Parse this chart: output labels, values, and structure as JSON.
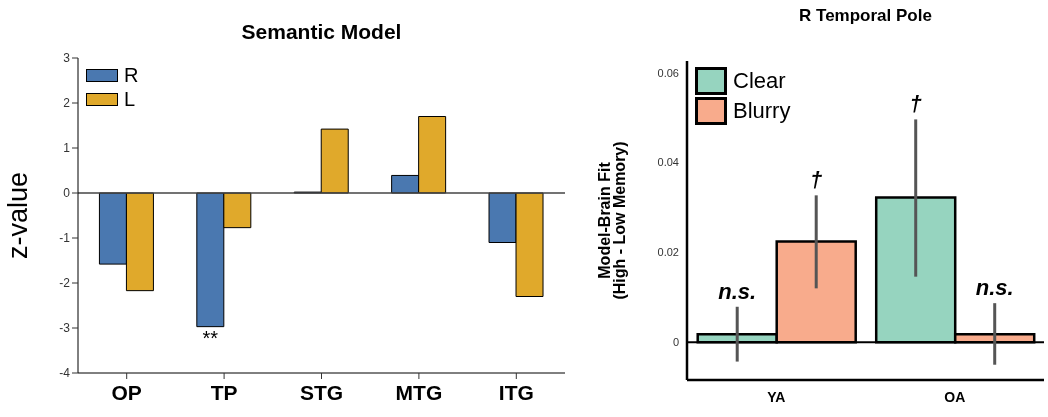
{
  "chart_data": [
    {
      "type": "bar",
      "title": "Semantic Model",
      "ylabel": "z-value",
      "categories": [
        "OP",
        "TP",
        "STG",
        "MTG",
        "ITG"
      ],
      "ylim": [
        -4,
        3
      ],
      "yticks": [
        -4,
        -3,
        -2,
        -1,
        0,
        1,
        2,
        3
      ],
      "legend": "top left",
      "series": [
        {
          "name": "R",
          "color": "#4a78b0",
          "values": [
            -1.58,
            -2.97,
            0.02,
            0.39,
            -1.1
          ]
        },
        {
          "name": "L",
          "color": "#e0a92b",
          "values": [
            -2.17,
            -0.77,
            1.42,
            1.7,
            -2.3
          ]
        }
      ],
      "ref_lines": [
        {
          "axis": "y",
          "value": 0
        }
      ],
      "annotations": [
        {
          "text": "**",
          "x": "TP",
          "y": -2.97
        }
      ]
    },
    {
      "type": "bar",
      "title": "R Temporal Pole",
      "ylabel": "Model-Brain Fit\n(High - Low Memory)",
      "categories": [
        "YA",
        "OA"
      ],
      "ylim": [
        -0.0084,
        0.0626
      ],
      "yticks": [
        0,
        0.02,
        0.04,
        0.06
      ],
      "legend": "top left",
      "series": [
        {
          "name": "Clear",
          "color": "#96d4bf",
          "values": [
            0.0018,
            0.0322
          ],
          "errors": [
            [
              -0.0043,
              0.0079
            ],
            [
              0.0146,
              0.0496
            ]
          ]
        },
        {
          "name": "Blurry",
          "color": "#f8ab8c",
          "values": [
            0.0224,
            0.0018
          ],
          "errors": [
            [
              0.012,
              0.0327
            ],
            [
              -0.005,
              0.0087
            ]
          ]
        }
      ],
      "ref_lines": [
        {
          "axis": "y",
          "value": 0
        }
      ],
      "annotations": [
        {
          "text": "n.s.",
          "x": "YA",
          "y": 0.0079
        },
        {
          "text": "†",
          "x": "YA",
          "y": 0.0224
        },
        "†",
        {
          "text": "n.s.",
          "x": "OA",
          "y": 0.0087
        }
      ]
    }
  ]
}
